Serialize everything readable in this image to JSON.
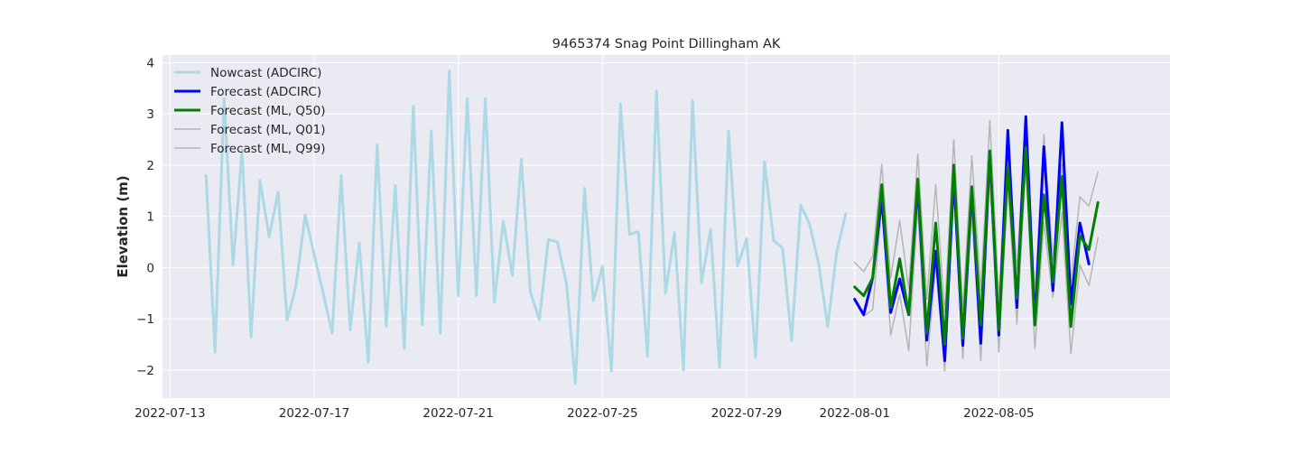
{
  "chart_data": {
    "type": "line",
    "title": "9465374 Snag Point Dillingham AK",
    "xlabel": "",
    "ylabel": "Elevation (m)",
    "xlim": [
      "2022-07-12T19:00",
      "2022-08-09T18:00"
    ],
    "ylim": [
      -2.55,
      4.15
    ],
    "grid": true,
    "legend_position": "top-left",
    "x_ticks": [
      "2022-07-13",
      "2022-07-17",
      "2022-07-21",
      "2022-07-25",
      "2022-07-29",
      "2022-08-01",
      "2022-08-05"
    ],
    "y_ticks": [
      -2,
      -1,
      0,
      1,
      2,
      3,
      4
    ],
    "y_tick_labels": [
      "−2",
      "−1",
      "0",
      "1",
      "2",
      "3",
      "4"
    ],
    "colors": {
      "background": "#EAEAF2",
      "grid": "#FFFFFF",
      "nowcast": "#ADD8E6",
      "forecast_adcirc": "#0000FF",
      "forecast_q50": "#008000",
      "forecast_q01": "#B5B5B5",
      "forecast_q99": "#B5B5B5"
    },
    "series": [
      {
        "name": "Nowcast (ADCIRC)",
        "color": "#ADD8E6",
        "width": 3,
        "x": [
          "2022-07-14T00:00",
          "2022-07-14T06:00",
          "2022-07-14T12:00",
          "2022-07-14T18:00",
          "2022-07-15T00:00",
          "2022-07-15T06:00",
          "2022-07-15T12:00",
          "2022-07-15T18:00",
          "2022-07-16T00:00",
          "2022-07-16T06:00",
          "2022-07-16T12:00",
          "2022-07-16T18:00",
          "2022-07-17T00:00",
          "2022-07-17T06:00",
          "2022-07-17T12:00",
          "2022-07-17T18:00",
          "2022-07-18T00:00",
          "2022-07-18T06:00",
          "2022-07-18T12:00",
          "2022-07-18T18:00",
          "2022-07-19T00:00",
          "2022-07-19T06:00",
          "2022-07-19T12:00",
          "2022-07-19T18:00",
          "2022-07-20T00:00",
          "2022-07-20T06:00",
          "2022-07-20T12:00",
          "2022-07-20T18:00",
          "2022-07-21T00:00",
          "2022-07-21T06:00",
          "2022-07-21T12:00",
          "2022-07-21T18:00",
          "2022-07-22T00:00",
          "2022-07-22T06:00",
          "2022-07-22T12:00",
          "2022-07-22T18:00",
          "2022-07-23T00:00",
          "2022-07-23T06:00",
          "2022-07-23T12:00",
          "2022-07-23T18:00",
          "2022-07-24T00:00",
          "2022-07-24T06:00",
          "2022-07-24T12:00",
          "2022-07-24T18:00",
          "2022-07-25T00:00",
          "2022-07-25T06:00",
          "2022-07-25T12:00",
          "2022-07-25T18:00",
          "2022-07-26T00:00",
          "2022-07-26T06:00",
          "2022-07-26T12:00",
          "2022-07-26T18:00",
          "2022-07-27T00:00",
          "2022-07-27T06:00",
          "2022-07-27T12:00",
          "2022-07-27T18:00",
          "2022-07-28T00:00",
          "2022-07-28T06:00",
          "2022-07-28T12:00",
          "2022-07-28T18:00",
          "2022-07-29T00:00",
          "2022-07-29T06:00",
          "2022-07-29T12:00",
          "2022-07-29T18:00",
          "2022-07-30T00:00",
          "2022-07-30T06:00",
          "2022-07-30T12:00",
          "2022-07-30T18:00",
          "2022-07-31T00:00",
          "2022-07-31T06:00",
          "2022-07-31T12:00",
          "2022-07-31T18:00"
        ],
        "y": [
          1.8,
          -1.65,
          3.3,
          0.05,
          2.3,
          -1.35,
          1.7,
          0.6,
          1.47,
          -1.03,
          -0.35,
          1.03,
          0.25,
          -0.5,
          -1.28,
          1.8,
          -1.22,
          0.48,
          -1.85,
          2.4,
          -1.15,
          1.6,
          -1.58,
          3.15,
          -1.12,
          2.67,
          -1.28,
          3.84,
          -0.55,
          3.3,
          -0.55,
          3.3,
          -0.68,
          0.9,
          -0.15,
          2.12,
          -0.48,
          -1.02,
          0.55,
          0.5,
          -0.3,
          -2.27,
          1.55,
          -0.65,
          0.02,
          -2.02,
          3.2,
          0.65,
          0.7,
          -1.73,
          3.45,
          -0.5,
          0.68,
          -2.0,
          3.26,
          -0.3,
          0.75,
          -1.95,
          2.66,
          0.03,
          0.56,
          -1.75,
          2.07,
          0.53,
          0.38,
          -1.43,
          1.22,
          0.85,
          0.08,
          -1.16,
          0.3,
          1.05
        ]
      },
      {
        "name": "Forecast (ADCIRC)",
        "color": "#0000FF",
        "width": 3,
        "x": [
          "2022-08-01T00:00",
          "2022-08-01T06:00",
          "2022-08-01T12:00",
          "2022-08-01T18:00",
          "2022-08-02T00:00",
          "2022-08-02T06:00",
          "2022-08-02T12:00",
          "2022-08-02T18:00",
          "2022-08-03T00:00",
          "2022-08-03T06:00",
          "2022-08-03T12:00",
          "2022-08-03T18:00",
          "2022-08-04T00:00",
          "2022-08-04T06:00",
          "2022-08-04T12:00",
          "2022-08-04T18:00",
          "2022-08-05T00:00",
          "2022-08-05T06:00",
          "2022-08-05T12:00",
          "2022-08-05T18:00",
          "2022-08-06T00:00",
          "2022-08-06T06:00",
          "2022-08-06T12:00",
          "2022-08-06T18:00",
          "2022-08-07T00:00",
          "2022-08-07T06:00",
          "2022-08-07T12:00"
        ],
        "y": [
          -0.62,
          -0.92,
          -0.2,
          1.35,
          -0.88,
          -0.22,
          -0.92,
          1.62,
          -1.42,
          0.32,
          -1.82,
          1.78,
          -1.52,
          1.52,
          -1.48,
          2.25,
          -1.32,
          2.68,
          -0.78,
          2.95,
          -1.12,
          2.36,
          -0.45,
          2.83,
          -0.72,
          0.87,
          0.07
        ]
      },
      {
        "name": "Forecast (ML, Q50)",
        "color": "#008000",
        "width": 3,
        "x": [
          "2022-08-01T00:00",
          "2022-08-01T06:00",
          "2022-08-01T12:00",
          "2022-08-01T18:00",
          "2022-08-02T00:00",
          "2022-08-02T06:00",
          "2022-08-02T12:00",
          "2022-08-02T18:00",
          "2022-08-03T00:00",
          "2022-08-03T06:00",
          "2022-08-03T12:00",
          "2022-08-03T18:00",
          "2022-08-04T00:00",
          "2022-08-04T06:00",
          "2022-08-04T12:00",
          "2022-08-04T18:00",
          "2022-08-05T00:00",
          "2022-08-05T06:00",
          "2022-08-05T12:00",
          "2022-08-05T18:00",
          "2022-08-06T00:00",
          "2022-08-06T06:00",
          "2022-08-06T12:00",
          "2022-08-06T18:00",
          "2022-08-07T00:00",
          "2022-08-07T06:00",
          "2022-08-07T12:00",
          "2022-08-07T18:00"
        ],
        "y": [
          -0.38,
          -0.55,
          -0.2,
          1.62,
          -0.78,
          0.17,
          -0.92,
          1.73,
          -1.28,
          0.87,
          -1.5,
          2.0,
          -1.38,
          1.58,
          -1.12,
          2.28,
          -1.22,
          1.97,
          -0.6,
          2.35,
          -1.12,
          1.42,
          -0.28,
          1.78,
          -1.15,
          0.62,
          0.35,
          1.27
        ]
      },
      {
        "name": "Forecast (ML, Q01)",
        "color": "#B5B5B5",
        "width": 1.5,
        "x": [
          "2022-08-01T00:00",
          "2022-08-01T06:00",
          "2022-08-01T12:00",
          "2022-08-01T18:00",
          "2022-08-02T00:00",
          "2022-08-02T06:00",
          "2022-08-02T12:00",
          "2022-08-02T18:00",
          "2022-08-03T00:00",
          "2022-08-03T06:00",
          "2022-08-03T12:00",
          "2022-08-03T18:00",
          "2022-08-04T00:00",
          "2022-08-04T06:00",
          "2022-08-04T12:00",
          "2022-08-04T18:00",
          "2022-08-05T00:00",
          "2022-08-05T06:00",
          "2022-08-05T12:00",
          "2022-08-05T18:00",
          "2022-08-06T00:00",
          "2022-08-06T06:00",
          "2022-08-06T12:00",
          "2022-08-06T18:00",
          "2022-08-07T00:00",
          "2022-08-07T06:00",
          "2022-08-07T12:00",
          "2022-08-07T18:00"
        ],
        "y": [
          -0.65,
          -0.95,
          -0.82,
          1.25,
          -1.32,
          -0.52,
          -1.62,
          1.18,
          -1.92,
          0.05,
          -2.02,
          1.55,
          -1.78,
          1.05,
          -1.82,
          1.78,
          -1.65,
          1.6,
          -1.1,
          1.98,
          -1.58,
          0.88,
          -0.58,
          1.08,
          -1.68,
          0.05,
          -0.35,
          0.58
        ]
      },
      {
        "name": "Forecast (ML, Q99)",
        "color": "#B5B5B5",
        "width": 1.5,
        "x": [
          "2022-08-01T00:00",
          "2022-08-01T06:00",
          "2022-08-01T12:00",
          "2022-08-01T18:00",
          "2022-08-02T00:00",
          "2022-08-02T06:00",
          "2022-08-02T12:00",
          "2022-08-02T18:00",
          "2022-08-03T00:00",
          "2022-08-03T06:00",
          "2022-08-03T12:00",
          "2022-08-03T18:00",
          "2022-08-04T00:00",
          "2022-08-04T06:00",
          "2022-08-04T12:00",
          "2022-08-04T18:00",
          "2022-08-05T00:00",
          "2022-08-05T06:00",
          "2022-08-05T12:00",
          "2022-08-05T18:00",
          "2022-08-06T00:00",
          "2022-08-06T06:00",
          "2022-08-06T12:00",
          "2022-08-06T18:00",
          "2022-08-07T00:00",
          "2022-08-07T06:00",
          "2022-08-07T12:00",
          "2022-08-07T18:00"
        ],
        "y": [
          0.1,
          -0.08,
          0.22,
          2.02,
          -0.2,
          0.92,
          -0.42,
          2.22,
          -0.62,
          1.62,
          -0.88,
          2.5,
          -0.82,
          2.18,
          -0.45,
          2.87,
          -0.58,
          2.6,
          -0.02,
          2.92,
          -0.55,
          2.6,
          0.15,
          2.02,
          -0.28,
          1.38,
          1.2,
          1.87
        ]
      }
    ]
  }
}
